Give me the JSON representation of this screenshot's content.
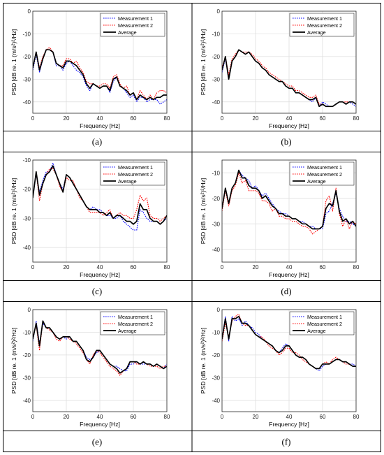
{
  "legend": {
    "m1": "Measurement 1",
    "m2": "Measurement 2",
    "avg": "Average"
  },
  "axes": {
    "xlabel": "Frequency [Hz]",
    "ylabel": "PSD [dB re. 1 (m/s²)²/Hz]"
  },
  "colors": {
    "m1": "#0000ff",
    "m2": "#ff0000",
    "avg": "#000000",
    "grid": "#dcdcdc"
  },
  "chart_data": [
    {
      "type": "line",
      "caption": "(a)",
      "xlim": [
        0,
        80
      ],
      "ylim": [
        -45,
        0
      ],
      "xticks": [
        0,
        20,
        40,
        60,
        80
      ],
      "yticks": [
        -40,
        -30,
        -20,
        -10,
        0
      ],
      "grid": true,
      "legend_position": "top-right",
      "x": [
        0,
        2,
        4,
        6,
        8,
        10,
        12,
        14,
        16,
        18,
        20,
        22,
        24,
        26,
        28,
        30,
        32,
        34,
        36,
        38,
        40,
        42,
        44,
        46,
        48,
        50,
        52,
        54,
        56,
        58,
        60,
        62,
        64,
        66,
        68,
        70,
        72,
        74,
        76,
        78,
        80
      ],
      "series": [
        {
          "name": "Measurement 1",
          "values": [
            -26,
            -19,
            -27,
            -21,
            -17,
            -17,
            -18,
            -24,
            -24,
            -26,
            -23,
            -22,
            -24,
            -26,
            -27,
            -29,
            -33,
            -35,
            -32,
            -33,
            -34,
            -33,
            -33,
            -36,
            -31,
            -29,
            -33,
            -34,
            -36,
            -38,
            -37,
            -40,
            -38,
            -38,
            -40,
            -39,
            -39,
            -39,
            -41,
            -40,
            -39
          ]
        },
        {
          "name": "Measurement 2",
          "values": [
            -25,
            -18,
            -25,
            -20,
            -17,
            -16,
            -18,
            -23,
            -24,
            -24,
            -21,
            -21,
            -23,
            -22,
            -25,
            -27,
            -31,
            -32,
            -32,
            -33,
            -33,
            -32,
            -32,
            -34,
            -29,
            -28,
            -32,
            -34,
            -33,
            -37,
            -36,
            -39,
            -35,
            -37,
            -39,
            -37,
            -39,
            -36,
            -35,
            -35,
            -36
          ]
        },
        {
          "name": "Average",
          "values": [
            -25,
            -18,
            -26,
            -21,
            -17,
            -17,
            -18,
            -23,
            -24,
            -25,
            -22,
            -22,
            -23,
            -24,
            -26,
            -28,
            -32,
            -34,
            -32,
            -33,
            -34,
            -33,
            -33,
            -35,
            -30,
            -29,
            -33,
            -34,
            -35,
            -37,
            -36,
            -39,
            -37,
            -38,
            -39,
            -38,
            -39,
            -38,
            -38,
            -37,
            -37
          ]
        }
      ]
    },
    {
      "type": "line",
      "caption": "(b)",
      "xlim": [
        0,
        80
      ],
      "ylim": [
        -45,
        0
      ],
      "xticks": [
        0,
        20,
        40,
        60,
        80
      ],
      "yticks": [
        -40,
        -30,
        -20,
        -10,
        0
      ],
      "grid": true,
      "legend_position": "top-right",
      "x": [
        0,
        2,
        4,
        6,
        8,
        10,
        12,
        14,
        16,
        18,
        20,
        22,
        24,
        26,
        28,
        30,
        32,
        34,
        36,
        38,
        40,
        42,
        44,
        46,
        48,
        50,
        52,
        54,
        56,
        58,
        60,
        62,
        64,
        66,
        68,
        70,
        72,
        74,
        76,
        78,
        80
      ],
      "series": [
        {
          "name": "Measurement 1",
          "values": [
            -27,
            -21,
            -30,
            -22,
            -20,
            -17,
            -18,
            -19,
            -18,
            -20,
            -22,
            -23,
            -25,
            -26,
            -28,
            -29,
            -30,
            -31,
            -31,
            -33,
            -34,
            -34,
            -36,
            -36,
            -37,
            -38,
            -39,
            -40,
            -38,
            -42,
            -40,
            -41,
            -42,
            -42,
            -41,
            -40,
            -40,
            -41,
            -40,
            -41,
            -42
          ]
        },
        {
          "name": "Measurement 2",
          "values": [
            -25,
            -20,
            -28,
            -21,
            -19,
            -17,
            -18,
            -18,
            -18,
            -19,
            -21,
            -22,
            -24,
            -25,
            -27,
            -28,
            -29,
            -30,
            -31,
            -32,
            -33,
            -33,
            -35,
            -35,
            -36,
            -37,
            -38,
            -38,
            -37,
            -41,
            -41,
            -42,
            -42,
            -42,
            -41,
            -40,
            -40,
            -40,
            -40,
            -40,
            -41
          ]
        },
        {
          "name": "Average",
          "values": [
            -26,
            -20,
            -30,
            -22,
            -20,
            -17,
            -18,
            -19,
            -18,
            -20,
            -22,
            -23,
            -25,
            -26,
            -28,
            -29,
            -30,
            -31,
            -31,
            -33,
            -34,
            -34,
            -36,
            -36,
            -37,
            -38,
            -39,
            -39,
            -38,
            -42,
            -41,
            -42,
            -42,
            -42,
            -41,
            -40,
            -40,
            -41,
            -40,
            -40,
            -41
          ]
        }
      ]
    },
    {
      "type": "line",
      "caption": "(c)",
      "xlim": [
        0,
        80
      ],
      "ylim": [
        -45,
        -10
      ],
      "xticks": [
        0,
        20,
        40,
        60,
        80
      ],
      "yticks": [
        -40,
        -30,
        -20,
        -10
      ],
      "grid": true,
      "legend_position": "top-right",
      "x": [
        0,
        2,
        4,
        6,
        8,
        10,
        12,
        14,
        16,
        18,
        20,
        22,
        24,
        26,
        28,
        30,
        32,
        34,
        36,
        38,
        40,
        42,
        44,
        46,
        48,
        50,
        52,
        54,
        56,
        58,
        60,
        62,
        64,
        66,
        68,
        70,
        72,
        74,
        76,
        78,
        80
      ],
      "series": [
        {
          "name": "Measurement 1",
          "values": [
            -22,
            -15,
            -21,
            -17,
            -14,
            -14,
            -11,
            -15,
            -18,
            -20,
            -15,
            -16,
            -18,
            -20,
            -22,
            -24,
            -26,
            -27,
            -26,
            -27,
            -27,
            -28,
            -29,
            -29,
            -30,
            -30,
            -29,
            -31,
            -32,
            -33,
            -34,
            -34,
            -27,
            -28,
            -30,
            -31,
            -31,
            -31,
            -32,
            -31,
            -30
          ]
        },
        {
          "name": "Measurement 2",
          "values": [
            -23,
            -14,
            -24,
            -18,
            -15,
            -13,
            -13,
            -15,
            -19,
            -21,
            -16,
            -17,
            -17,
            -20,
            -23,
            -24,
            -26,
            -28,
            -28,
            -28,
            -28,
            -29,
            -28,
            -27,
            -30,
            -29,
            -28,
            -29,
            -29,
            -30,
            -30,
            -27,
            -22,
            -24,
            -23,
            -29,
            -30,
            -30,
            -31,
            -30,
            -29
          ]
        },
        {
          "name": "Average",
          "values": [
            -23,
            -14,
            -22,
            -18,
            -15,
            -14,
            -12,
            -15,
            -18,
            -21,
            -15,
            -16,
            -18,
            -20,
            -22,
            -24,
            -26,
            -27,
            -27,
            -27,
            -28,
            -28,
            -29,
            -28,
            -30,
            -29,
            -29,
            -30,
            -31,
            -31,
            -32,
            -31,
            -25,
            -27,
            -27,
            -30,
            -31,
            -31,
            -32,
            -31,
            -29
          ]
        }
      ]
    },
    {
      "type": "line",
      "caption": "(d)",
      "xlim": [
        0,
        80
      ],
      "ylim": [
        -45,
        -5
      ],
      "xticks": [
        0,
        20,
        40,
        60,
        80
      ],
      "yticks": [
        -40,
        -30,
        -20,
        -10
      ],
      "grid": true,
      "legend_position": "top-right",
      "x": [
        0,
        2,
        4,
        6,
        8,
        10,
        12,
        14,
        16,
        18,
        20,
        22,
        24,
        26,
        28,
        30,
        32,
        34,
        36,
        38,
        40,
        42,
        44,
        46,
        48,
        50,
        52,
        54,
        56,
        58,
        60,
        62,
        64,
        66,
        68,
        70,
        72,
        74,
        76,
        78,
        80
      ],
      "series": [
        {
          "name": "Measurement 1",
          "values": [
            -24,
            -16,
            -22,
            -16,
            -14,
            -9,
            -11,
            -12,
            -13,
            -16,
            -15,
            -17,
            -19,
            -18,
            -20,
            -22,
            -24,
            -25,
            -26,
            -26,
            -27,
            -28,
            -28,
            -29,
            -29,
            -30,
            -31,
            -31,
            -32,
            -32,
            -32,
            -26,
            -25,
            -22,
            -18,
            -24,
            -27,
            -29,
            -29,
            -30,
            -31
          ]
        },
        {
          "name": "Measurement 2",
          "values": [
            -25,
            -17,
            -23,
            -17,
            -15,
            -10,
            -14,
            -13,
            -17,
            -17,
            -17,
            -18,
            -21,
            -21,
            -22,
            -25,
            -24,
            -27,
            -27,
            -28,
            -28,
            -29,
            -29,
            -30,
            -31,
            -31,
            -32,
            -34,
            -33,
            -32,
            -31,
            -21,
            -19,
            -25,
            -16,
            -26,
            -31,
            -28,
            -32,
            -29,
            -30
          ]
        },
        {
          "name": "Average",
          "values": [
            -24,
            -16,
            -22,
            -16,
            -14,
            -9,
            -12,
            -12,
            -15,
            -16,
            -16,
            -17,
            -20,
            -19,
            -21,
            -23,
            -24,
            -26,
            -26,
            -27,
            -27,
            -28,
            -28,
            -29,
            -30,
            -30,
            -31,
            -32,
            -32,
            -32,
            -31,
            -24,
            -22,
            -23,
            -17,
            -25,
            -29,
            -28,
            -30,
            -29,
            -31
          ]
        }
      ]
    },
    {
      "type": "line",
      "caption": "(e)",
      "xlim": [
        0,
        80
      ],
      "ylim": [
        -45,
        0
      ],
      "xticks": [
        0,
        20,
        40,
        60,
        80
      ],
      "yticks": [
        -40,
        -30,
        -20,
        -10,
        0
      ],
      "grid": true,
      "legend_position": "top-right",
      "x": [
        0,
        2,
        4,
        6,
        8,
        10,
        12,
        14,
        16,
        18,
        20,
        22,
        24,
        26,
        28,
        30,
        32,
        34,
        36,
        38,
        40,
        42,
        44,
        46,
        48,
        50,
        52,
        54,
        56,
        58,
        60,
        62,
        64,
        66,
        68,
        70,
        72,
        74,
        76,
        78,
        80
      ],
      "series": [
        {
          "name": "Measurement 1",
          "values": [
            -14,
            -5,
            -15,
            -6,
            -8,
            -8,
            -10,
            -12,
            -13,
            -12,
            -13,
            -12,
            -14,
            -14,
            -16,
            -18,
            -21,
            -22,
            -21,
            -19,
            -18,
            -20,
            -22,
            -24,
            -25,
            -25,
            -26,
            -27,
            -27,
            -24,
            -24,
            -23,
            -24,
            -24,
            -24,
            -24,
            -25,
            -24,
            -25,
            -26,
            -24
          ]
        },
        {
          "name": "Measurement 2",
          "values": [
            -12,
            -7,
            -18,
            -5,
            -8,
            -9,
            -10,
            -13,
            -14,
            -12,
            -12,
            -13,
            -14,
            -15,
            -17,
            -19,
            -22,
            -24,
            -20,
            -18,
            -19,
            -21,
            -23,
            -25,
            -26,
            -27,
            -29,
            -27,
            -26,
            -23,
            -23,
            -24,
            -24,
            -23,
            -24,
            -25,
            -25,
            -25,
            -26,
            -25,
            -25
          ]
        },
        {
          "name": "Average",
          "values": [
            -13,
            -6,
            -16,
            -5,
            -8,
            -8,
            -10,
            -12,
            -13,
            -12,
            -12,
            -12,
            -14,
            -14,
            -16,
            -18,
            -22,
            -23,
            -21,
            -18,
            -18,
            -20,
            -22,
            -24,
            -25,
            -26,
            -28,
            -27,
            -26,
            -23,
            -23,
            -23,
            -24,
            -23,
            -24,
            -24,
            -25,
            -24,
            -25,
            -26,
            -25
          ]
        }
      ]
    },
    {
      "type": "line",
      "caption": "(f)",
      "xlim": [
        0,
        80
      ],
      "ylim": [
        -45,
        0
      ],
      "xticks": [
        0,
        20,
        40,
        60,
        80
      ],
      "yticks": [
        -40,
        -30,
        -20,
        -10,
        0
      ],
      "grid": true,
      "legend_position": "top-right",
      "x": [
        0,
        2,
        4,
        6,
        8,
        10,
        12,
        14,
        16,
        18,
        20,
        22,
        24,
        26,
        28,
        30,
        32,
        34,
        36,
        38,
        40,
        42,
        44,
        46,
        48,
        50,
        52,
        54,
        56,
        58,
        60,
        62,
        64,
        66,
        68,
        70,
        72,
        74,
        76,
        78,
        80
      ],
      "series": [
        {
          "name": "Measurement 1",
          "values": [
            -13,
            -3,
            -14,
            -3,
            -5,
            -4,
            -7,
            -5,
            -7,
            -8,
            -10,
            -11,
            -13,
            -14,
            -15,
            -16,
            -18,
            -19,
            -17,
            -15,
            -16,
            -18,
            -20,
            -21,
            -21,
            -22,
            -24,
            -25,
            -26,
            -27,
            -25,
            -24,
            -24,
            -23,
            -22,
            -22,
            -23,
            -23,
            -24,
            -24,
            -25
          ]
        },
        {
          "name": "Measurement 2",
          "values": [
            -14,
            -6,
            -12,
            -5,
            -3,
            -2,
            -6,
            -7,
            -7,
            -9,
            -11,
            -12,
            -12,
            -14,
            -16,
            -17,
            -18,
            -20,
            -19,
            -17,
            -17,
            -19,
            -19,
            -20,
            -22,
            -23,
            -24,
            -25,
            -26,
            -26,
            -24,
            -23,
            -24,
            -22,
            -21,
            -22,
            -23,
            -24,
            -24,
            -25,
            -25
          ]
        },
        {
          "name": "Average",
          "values": [
            -13,
            -4,
            -13,
            -4,
            -4,
            -3,
            -6,
            -6,
            -7,
            -9,
            -11,
            -12,
            -13,
            -14,
            -15,
            -16,
            -18,
            -19,
            -18,
            -16,
            -16,
            -18,
            -20,
            -21,
            -21,
            -22,
            -24,
            -25,
            -26,
            -26,
            -24,
            -24,
            -24,
            -23,
            -22,
            -22,
            -23,
            -23,
            -24,
            -25,
            -25
          ]
        }
      ]
    }
  ]
}
